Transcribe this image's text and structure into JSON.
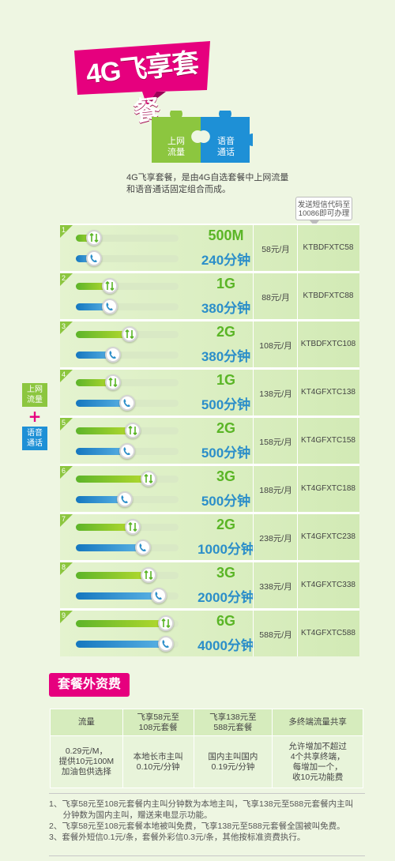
{
  "header": {
    "title": "4G飞享套餐",
    "puzzle_left": "上网\n流量",
    "puzzle_right": "语音\n通话",
    "intro": "4G飞享套餐，是由4G自选套餐中上网流量和语音通话固定组合而成。",
    "sms_note": "发送短信代码至10086即可办理"
  },
  "side": {
    "data_label": "上网\n流量",
    "plus": "+",
    "voice_label": "语音\n通话"
  },
  "colors": {
    "accent": "#e6007e",
    "data_green": "#5ab526",
    "voice_blue": "#2b8ec9"
  },
  "plans": [
    {
      "num": "1",
      "data": "500M",
      "voice": "240分钟",
      "price": "58元/月",
      "code": "KTBDFXTC58",
      "data_level": 0.18,
      "voice_level": 0.18
    },
    {
      "num": "2",
      "data": "1G",
      "voice": "380分钟",
      "price": "88元/月",
      "code": "KTBDFXTC88",
      "data_level": 0.33,
      "voice_level": 0.33
    },
    {
      "num": "3",
      "data": "2G",
      "voice": "380分钟",
      "price": "108元/月",
      "code": "KTBDFXTC108",
      "data_level": 0.52,
      "voice_level": 0.36
    },
    {
      "num": "4",
      "data": "1G",
      "voice": "500分钟",
      "price": "138元/月",
      "code": "KT4GFXTC138",
      "data_level": 0.36,
      "voice_level": 0.5
    },
    {
      "num": "5",
      "data": "2G",
      "voice": "500分钟",
      "price": "158元/月",
      "code": "KT4GFXTC158",
      "data_level": 0.55,
      "voice_level": 0.5
    },
    {
      "num": "6",
      "data": "3G",
      "voice": "500分钟",
      "price": "188元/月",
      "code": "KT4GFXTC188",
      "data_level": 0.71,
      "voice_level": 0.48
    },
    {
      "num": "7",
      "data": "2G",
      "voice": "1000分钟",
      "price": "238元/月",
      "code": "KT4GFXTC238",
      "data_level": 0.55,
      "voice_level": 0.65
    },
    {
      "num": "8",
      "data": "3G",
      "voice": "2000分钟",
      "price": "338元/月",
      "code": "KT4GFXTC338",
      "data_level": 0.71,
      "voice_level": 0.81
    },
    {
      "num": "9",
      "data": "6G",
      "voice": "4000分钟",
      "price": "588元/月",
      "code": "KT4GFXTC588",
      "data_level": 0.88,
      "voice_level": 0.88
    }
  ],
  "extra": {
    "title": "套餐外资费",
    "headers": [
      "流量",
      "飞享58元至\n108元套餐",
      "飞享138元至\n588元套餐",
      "多终端流量共享"
    ],
    "cells": [
      "0.29元/M，\n提供10元100M\n加油包供选择",
      "本地长市主叫\n0.10元/分钟",
      "国内主叫国内\n0.19元/分钟",
      "允许增加不超过\n4个共享终端，\n每增加一个，\n收10元功能费"
    ]
  },
  "notes": [
    "1、飞享58元至108元套餐内主叫分钟数为本地主叫，飞享138元至588元套餐内主叫",
    "      分钟数为国内主叫，赠送来电显示功能。",
    "2、飞享58元至108元套餐本地被叫免费，飞享138元至588元套餐全国被叫免费。",
    "3、套餐外短信0.1元/条，套餐外彩信0.3元/条，其他按标准资费执行。"
  ]
}
